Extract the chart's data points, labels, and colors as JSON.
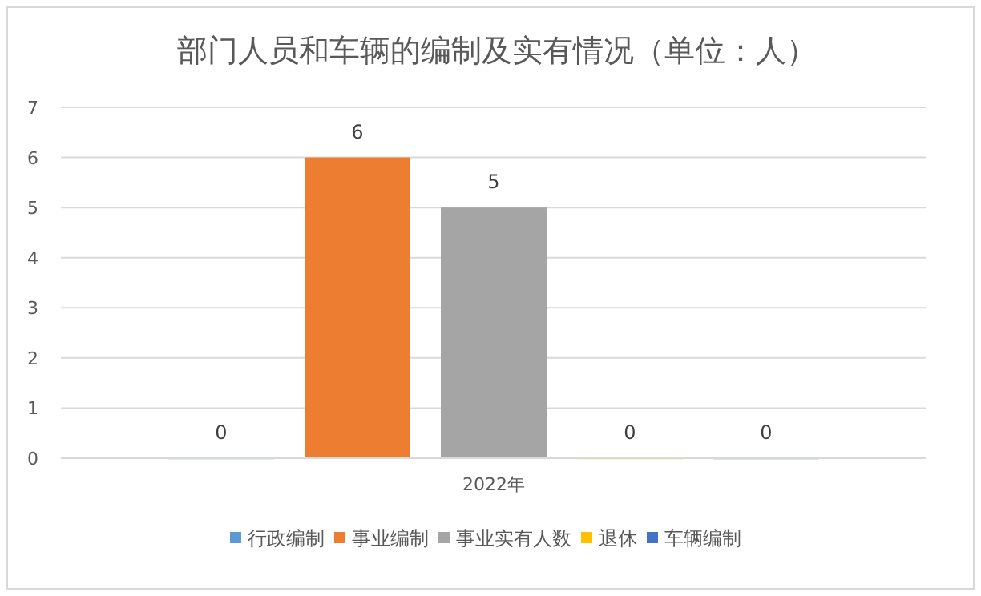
{
  "chart_data": {
    "type": "bar",
    "title": "部门人员和车辆的编制及实有情况（单位：人）",
    "categories": [
      "2022年"
    ],
    "series": [
      {
        "name": "行政编制",
        "color": "#5b9bd5",
        "values": [
          0
        ]
      },
      {
        "name": "事业编制",
        "color": "#ed7d31",
        "values": [
          6
        ]
      },
      {
        "name": "事业实有人数",
        "color": "#a5a5a5",
        "values": [
          5
        ]
      },
      {
        "name": "退休",
        "color": "#ffc000",
        "values": [
          0
        ]
      },
      {
        "name": "车辆编制",
        "color": "#4472c4",
        "values": [
          0
        ]
      }
    ],
    "ylim": [
      0,
      7
    ],
    "yticks": [
      0,
      1,
      2,
      3,
      4,
      5,
      6,
      7
    ],
    "grid": "y",
    "legend": "bottom",
    "data_labels": true
  }
}
